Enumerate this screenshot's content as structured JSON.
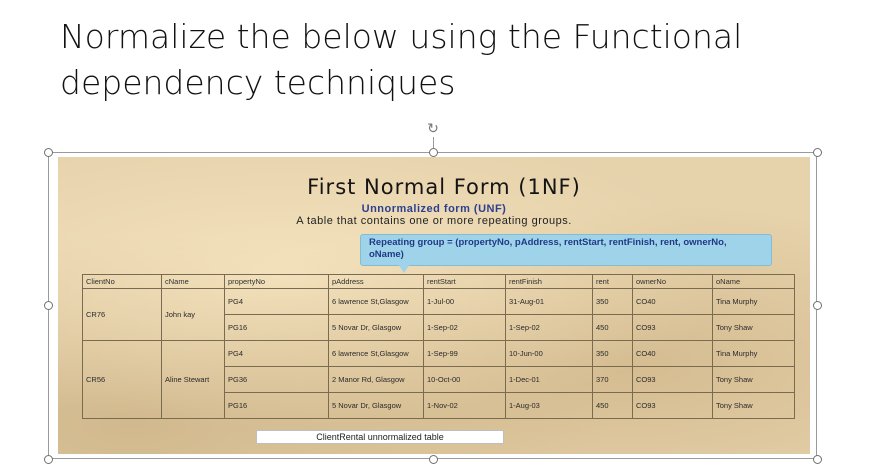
{
  "slide": {
    "title": "Normalize the below using the Functional dependency techniques"
  },
  "image": {
    "title": "First Normal Form (1NF)",
    "subtitle": "Unnormalized form (UNF)",
    "description": "A table that contains one or more repeating groups.",
    "callout": "Repeating group = (propertyNo, pAddress, rentStart, rentFinish, rent, ownerNo, oName)",
    "caption": "ClientRental unnormalized table",
    "table": {
      "headers": [
        "ClientNo",
        "cName",
        "propertyNo",
        "pAddress",
        "rentStart",
        "rentFinish",
        "rent",
        "ownerNo",
        "oName"
      ],
      "clients": [
        {
          "clientNo": "CR76",
          "cName": "John kay",
          "rows": [
            {
              "propertyNo": "PG4",
              "pAddress": "6 lawrence St,Glasgow",
              "rentStart": "1-Jul-00",
              "rentFinish": "31-Aug-01",
              "rent": "350",
              "ownerNo": "CO40",
              "oName": "Tina Murphy"
            },
            {
              "propertyNo": "PG16",
              "pAddress": "5 Novar Dr, Glasgow",
              "rentStart": "1-Sep-02",
              "rentFinish": "1-Sep-02",
              "rent": "450",
              "ownerNo": "CO93",
              "oName": "Tony Shaw"
            }
          ]
        },
        {
          "clientNo": "CR56",
          "cName": "Aline Stewart",
          "rows": [
            {
              "propertyNo": "PG4",
              "pAddress": "6 lawrence St,Glasgow",
              "rentStart": "1-Sep-99",
              "rentFinish": "10-Jun-00",
              "rent": "350",
              "ownerNo": "CO40",
              "oName": "Tina Murphy"
            },
            {
              "propertyNo": "PG36",
              "pAddress": "2 Manor Rd, Glasgow",
              "rentStart": "10-Oct-00",
              "rentFinish": "1-Dec-01",
              "rent": "370",
              "ownerNo": "CO93",
              "oName": "Tony Shaw"
            },
            {
              "propertyNo": "PG16",
              "pAddress": "5 Novar Dr, Glasgow",
              "rentStart": "1-Nov-02",
              "rentFinish": "1-Aug-03",
              "rent": "450",
              "ownerNo": "CO93",
              "oName": "Tony Shaw"
            }
          ]
        }
      ]
    }
  },
  "colors": {
    "subtitle": "#2d3f8f",
    "callout_bg": "#9fd3e9",
    "parchment": "#e6d2ab"
  }
}
